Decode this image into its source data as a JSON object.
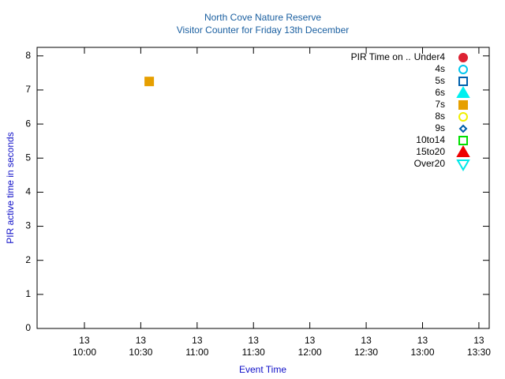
{
  "chart_data": {
    "type": "scatter",
    "title": "North Cove Nature Reserve",
    "subtitle": "Visitor Counter for Friday 13th December",
    "xlabel": "Event Time",
    "ylabel": "PIR active time in seconds",
    "legend_title": "PIR Time on ..",
    "legend": "top-right",
    "xlim": [
      574.8,
      815.5
    ],
    "xticks": [
      {
        "value": 600,
        "label": "13\n10:00"
      },
      {
        "value": 630,
        "label": "13\n10:30"
      },
      {
        "value": 660,
        "label": "13\n11:00"
      },
      {
        "value": 690,
        "label": "13\n11:30"
      },
      {
        "value": 720,
        "label": "13\n12:00"
      },
      {
        "value": 750,
        "label": "13\n12:30"
      },
      {
        "value": 780,
        "label": "13\n13:00"
      },
      {
        "value": 810,
        "label": "13\n13:30"
      }
    ],
    "ylim": [
      0,
      8.25
    ],
    "yticks": [
      0,
      1,
      2,
      3,
      4,
      5,
      6,
      7,
      8
    ],
    "series": [
      {
        "name": "Under4",
        "color": "#dd2233",
        "marker": "circle",
        "filled": true,
        "x": [],
        "values": []
      },
      {
        "name": "4s",
        "color": "#00c8f0",
        "marker": "circle",
        "filled": false,
        "x": [],
        "values": []
      },
      {
        "name": "5s",
        "color": "#0060ad",
        "marker": "square",
        "filled": false,
        "x": [],
        "values": []
      },
      {
        "name": "6s",
        "color": "#00f0f0",
        "marker": "triangle",
        "filled": true,
        "x": [],
        "values": []
      },
      {
        "name": "7s",
        "color": "#e69f00",
        "marker": "square",
        "filled": true,
        "x": [
          634.5
        ],
        "values": [
          7.25
        ]
      },
      {
        "name": "8s",
        "color": "#f0f000",
        "marker": "circle",
        "filled": false,
        "x": [],
        "values": []
      },
      {
        "name": "9s",
        "color": "#0060ad",
        "marker": "diamond",
        "filled": false,
        "x": [],
        "values": []
      },
      {
        "name": "10to14",
        "color": "#00e000",
        "marker": "square",
        "filled": false,
        "x": [],
        "values": []
      },
      {
        "name": "15to20",
        "color": "#ee0000",
        "marker": "triangle",
        "filled": true,
        "x": [],
        "values": []
      },
      {
        "name": "Over20",
        "color": "#00e8e8",
        "marker": "itriangle",
        "filled": false,
        "x": [],
        "values": []
      }
    ]
  }
}
